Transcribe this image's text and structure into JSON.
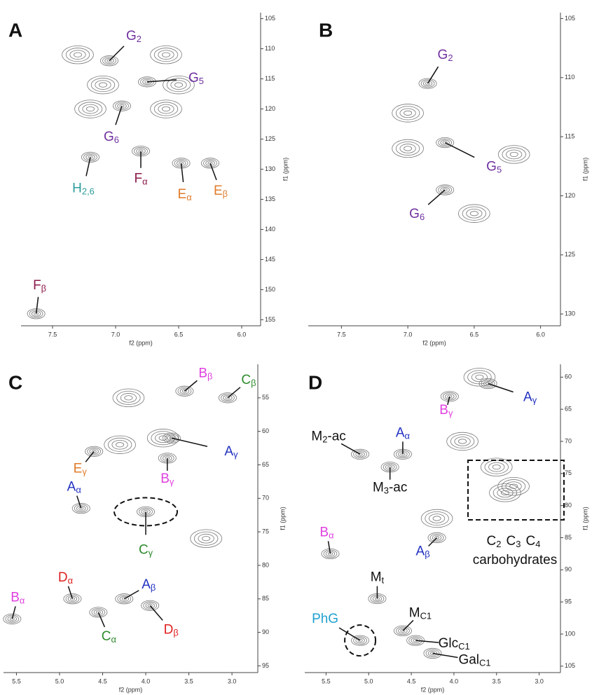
{
  "chart_data": [
    {
      "type": "contour",
      "panel": "A",
      "xlabel": "f2 (ppm)",
      "ylabel": "f1 (ppm)",
      "xlim": [
        7.75,
        5.85
      ],
      "xticks": [
        7.5,
        {
          "value": 7,
          "label": "7.0"
        },
        6.5,
        {
          "value": 6,
          "label": "6.0"
        }
      ],
      "ylim": [
        104,
        156
      ],
      "yticks": [
        105,
        110,
        115,
        120,
        125,
        130,
        135,
        140,
        145,
        150,
        155
      ],
      "peaks": [
        {
          "x": 7.3,
          "y": 111
        },
        {
          "x": 6.6,
          "y": 111
        },
        {
          "x": 7.1,
          "y": 116
        },
        {
          "x": 6.5,
          "y": 116
        },
        {
          "x": 7.2,
          "y": 120
        },
        {
          "x": 6.6,
          "y": 120
        }
      ],
      "annotations": [
        {
          "label": {
            "base": "G",
            "sub": "2"
          },
          "x": 7.05,
          "y": 112,
          "color": "#7030a0"
        },
        {
          "label": {
            "base": "G",
            "sub": "5"
          },
          "x": 6.75,
          "y": 115.5,
          "color": "#7030a0"
        },
        {
          "label": {
            "base": "G",
            "sub": "6"
          },
          "x": 6.95,
          "y": 119.5,
          "color": "#7030a0"
        },
        {
          "label": {
            "base": "H",
            "sub": "2,6"
          },
          "x": 7.2,
          "y": 128,
          "color": "#2e9c9c"
        },
        {
          "label": {
            "base": "F",
            "sub": "α"
          },
          "x": 6.8,
          "y": 127,
          "color": "#8b1a4a"
        },
        {
          "label": {
            "base": "E",
            "sub": "α"
          },
          "x": 6.48,
          "y": 129,
          "color": "#e07b2a"
        },
        {
          "label": {
            "base": "E",
            "sub": "β"
          },
          "x": 6.25,
          "y": 129,
          "color": "#e07b2a"
        },
        {
          "label": {
            "base": "F",
            "sub": "β"
          },
          "x": 7.63,
          "y": 154,
          "color": "#8b1a4a"
        }
      ]
    },
    {
      "type": "contour",
      "panel": "B",
      "xlabel": "f2 (ppm)",
      "ylabel": "f1 (ppm)",
      "xlim": [
        7.75,
        5.85
      ],
      "xticks": [
        7.5,
        {
          "value": 7,
          "label": "7.0"
        },
        6.5,
        {
          "value": 6,
          "label": "6.0"
        }
      ],
      "ylim": [
        104.5,
        131
      ],
      "yticks": [
        105,
        110,
        115,
        120,
        125,
        130
      ],
      "peaks": [
        {
          "x": 6.2,
          "y": 116.5
        },
        {
          "x": 7.0,
          "y": 113
        },
        {
          "x": 6.5,
          "y": 121.5
        },
        {
          "x": 7.0,
          "y": 116
        }
      ],
      "annotations": [
        {
          "label": {
            "base": "G",
            "sub": "2"
          },
          "x": 6.85,
          "y": 110.5,
          "color": "#7030a0"
        },
        {
          "label": {
            "base": "G",
            "sub": "5"
          },
          "x": 6.72,
          "y": 115.5,
          "color": "#7030a0"
        },
        {
          "label": {
            "base": "G",
            "sub": "6"
          },
          "x": 6.72,
          "y": 119.5,
          "color": "#7030a0"
        }
      ]
    },
    {
      "type": "contour",
      "panel": "C",
      "xlabel": "f2 (ppm)",
      "ylabel": "f1 (ppm)",
      "xlim": [
        5.65,
        2.7
      ],
      "xticks": [
        5.5,
        {
          "value": 5,
          "label": "5.0"
        },
        4.5,
        {
          "value": 4,
          "label": "4.0"
        },
        3.5,
        {
          "value": 3,
          "label": "3.0"
        }
      ],
      "ylim": [
        50,
        96
      ],
      "yticks": [
        55,
        60,
        65,
        70,
        75,
        80,
        85,
        90,
        95
      ],
      "peaks": [
        {
          "x": 4.2,
          "y": 55
        },
        {
          "x": 3.8,
          "y": 61
        },
        {
          "x": 4.3,
          "y": 62
        },
        {
          "x": 3.3,
          "y": 76
        }
      ],
      "annotations": [
        {
          "label": {
            "base": "B",
            "sub": "β"
          },
          "x": 3.55,
          "y": 54,
          "color": "#e040e0"
        },
        {
          "label": {
            "base": "C",
            "sub": "β"
          },
          "x": 3.05,
          "y": 55,
          "color": "#2e8b2e"
        },
        {
          "label": {
            "base": "E",
            "sub": "γ"
          },
          "x": 4.6,
          "y": 63,
          "color": "#e07b2a"
        },
        {
          "label": {
            "base": "A",
            "sub": "γ"
          },
          "x": 3.7,
          "y": 61,
          "color": "#2030c0"
        },
        {
          "label": {
            "base": "B",
            "sub": "γ"
          },
          "x": 3.75,
          "y": 64,
          "color": "#e040e0"
        },
        {
          "label": {
            "base": "A",
            "sub": "α"
          },
          "x": 4.75,
          "y": 71.5,
          "color": "#2030c0"
        },
        {
          "label": {
            "base": "C",
            "sub": "γ"
          },
          "x": 4.0,
          "y": 72,
          "color": "#2e8b2e"
        },
        {
          "label": {
            "base": "D",
            "sub": "α"
          },
          "x": 4.85,
          "y": 85,
          "color": "#e02020"
        },
        {
          "label": {
            "base": "C",
            "sub": "α"
          },
          "x": 4.55,
          "y": 87,
          "color": "#2e8b2e"
        },
        {
          "label": {
            "base": "A",
            "sub": "β"
          },
          "x": 4.25,
          "y": 85,
          "color": "#2030c0"
        },
        {
          "label": {
            "base": "D",
            "sub": "β"
          },
          "x": 3.95,
          "y": 86,
          "color": "#e02020"
        },
        {
          "label": {
            "base": "B",
            "sub": "α"
          },
          "x": 5.55,
          "y": 88,
          "color": "#e040e0"
        }
      ]
    },
    {
      "type": "contour",
      "panel": "D",
      "xlabel": "f2 (ppm)",
      "ylabel": "f1 (ppm)",
      "xlim": [
        5.75,
        2.75
      ],
      "xticks": [
        5.5,
        {
          "value": 5,
          "label": "5.0"
        },
        4.5,
        {
          "value": 4,
          "label": "4.0"
        },
        3.5,
        {
          "value": 3,
          "label": "3.0"
        }
      ],
      "ylim": [
        58,
        106
      ],
      "yticks": [
        60,
        65,
        70,
        75,
        80,
        85,
        90,
        95,
        100,
        105
      ],
      "peaks": [
        {
          "x": 3.9,
          "y": 70
        },
        {
          "x": 3.5,
          "y": 74
        },
        {
          "x": 3.3,
          "y": 77
        },
        {
          "x": 3.4,
          "y": 78
        },
        {
          "x": 3.7,
          "y": 60
        },
        {
          "x": 4.2,
          "y": 82
        }
      ],
      "annotations": [
        {
          "label": {
            "base": "A",
            "sub": "γ"
          },
          "x": 3.6,
          "y": 61,
          "color": "#2030c0"
        },
        {
          "label": {
            "base": "B",
            "sub": "γ"
          },
          "x": 4.05,
          "y": 63,
          "color": "#e040e0"
        },
        {
          "label": {
            "base": "M",
            "sub": "2",
            "after": "-ac"
          },
          "x": 5.1,
          "y": 72,
          "color": "#111"
        },
        {
          "label": {
            "base": "A",
            "sub": "α"
          },
          "x": 4.6,
          "y": 72,
          "color": "#2030c0"
        },
        {
          "label": {
            "base": "M",
            "sub": "3",
            "after": "-ac"
          },
          "x": 4.75,
          "y": 74,
          "color": "#111"
        },
        {
          "label": {
            "base": "B",
            "sub": "α"
          },
          "x": 5.45,
          "y": 87.5,
          "color": "#e040e0"
        },
        {
          "label": {
            "base": "A",
            "sub": "β"
          },
          "x": 4.2,
          "y": 85,
          "color": "#2030c0"
        },
        {
          "label": {
            "base": "M",
            "sub": "t"
          },
          "x": 4.9,
          "y": 94.5,
          "color": "#111"
        },
        {
          "label": {
            "base": "M",
            "sub": "C1"
          },
          "x": 4.6,
          "y": 99.5,
          "color": "#111"
        },
        {
          "label": {
            "base": "PhG"
          },
          "x": 5.1,
          "y": 101,
          "color": "#1fa0d0"
        },
        {
          "label": {
            "base": "Glc",
            "sub": "C1"
          },
          "x": 4.45,
          "y": 101,
          "color": "#111"
        },
        {
          "label": {
            "base": "Gal",
            "sub": "C1"
          },
          "x": 4.25,
          "y": 103,
          "color": "#111"
        }
      ],
      "box_label": {
        "parts": [
          {
            "base": "C",
            "sub": "2"
          },
          {
            "base": "C",
            "sub": "3"
          },
          {
            "base": "C",
            "sub": "4"
          }
        ],
        "text": "carbohydrates"
      }
    }
  ]
}
